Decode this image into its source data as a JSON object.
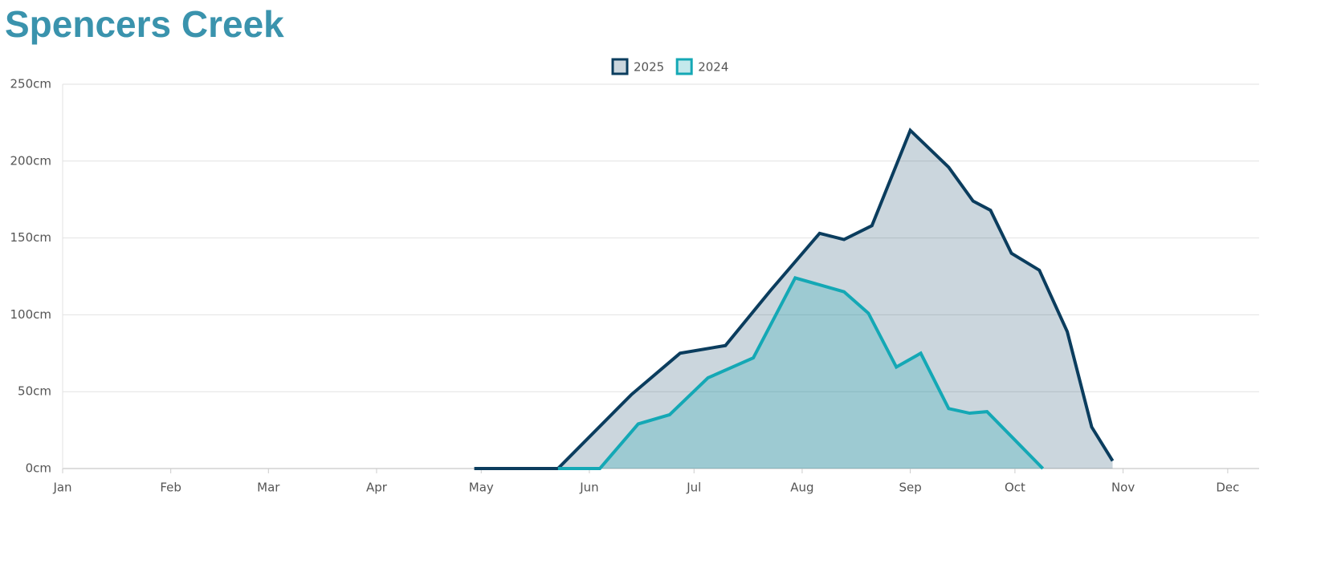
{
  "chart_data": {
    "type": "area",
    "title": "Spencers Creek",
    "xlim": [
      0,
      343
    ],
    "xticks": [
      {
        "value": 0,
        "label": "Jan"
      },
      {
        "value": 31,
        "label": "Feb"
      },
      {
        "value": 59,
        "label": "Mar"
      },
      {
        "value": 90,
        "label": "Apr"
      },
      {
        "value": 120,
        "label": "May"
      },
      {
        "value": 151,
        "label": "Jun"
      },
      {
        "value": 181,
        "label": "Jul"
      },
      {
        "value": 212,
        "label": "Aug"
      },
      {
        "value": 243,
        "label": "Sep"
      },
      {
        "value": 273,
        "label": "Oct"
      },
      {
        "value": 304,
        "label": "Nov"
      },
      {
        "value": 334,
        "label": "Dec"
      }
    ],
    "ylim": [
      0,
      250
    ],
    "yticks": [
      {
        "value": 0,
        "label": "0cm"
      },
      {
        "value": 50,
        "label": "50cm"
      },
      {
        "value": 100,
        "label": "100cm"
      },
      {
        "value": 150,
        "label": "150cm"
      },
      {
        "value": 200,
        "label": "200cm"
      },
      {
        "value": 250,
        "label": "250cm"
      }
    ],
    "grid": true,
    "legend": "top",
    "series": [
      {
        "name": "2025",
        "color": "#0b3d5e",
        "fill": "rgba(11,61,94,0.21)",
        "x": [
          118,
          142,
          163,
          177,
          190,
          203,
          217,
          224,
          232,
          243,
          254,
          261,
          266,
          272,
          280,
          288,
          295,
          301
        ],
        "values": [
          0,
          0,
          48,
          75,
          80,
          116,
          153,
          149,
          158,
          220,
          196,
          174,
          168,
          140,
          129,
          89,
          27,
          5
        ]
      },
      {
        "name": "2024",
        "color": "#14a8b5",
        "fill": "rgba(20,168,181,0.25)",
        "x": [
          142,
          154,
          165,
          174,
          185,
          198,
          210,
          224,
          231,
          239,
          246,
          254,
          260,
          265,
          281
        ],
        "values": [
          0,
          0,
          29,
          35,
          59,
          72,
          124,
          115,
          101,
          66,
          75,
          39,
          36,
          37,
          0
        ]
      }
    ]
  }
}
